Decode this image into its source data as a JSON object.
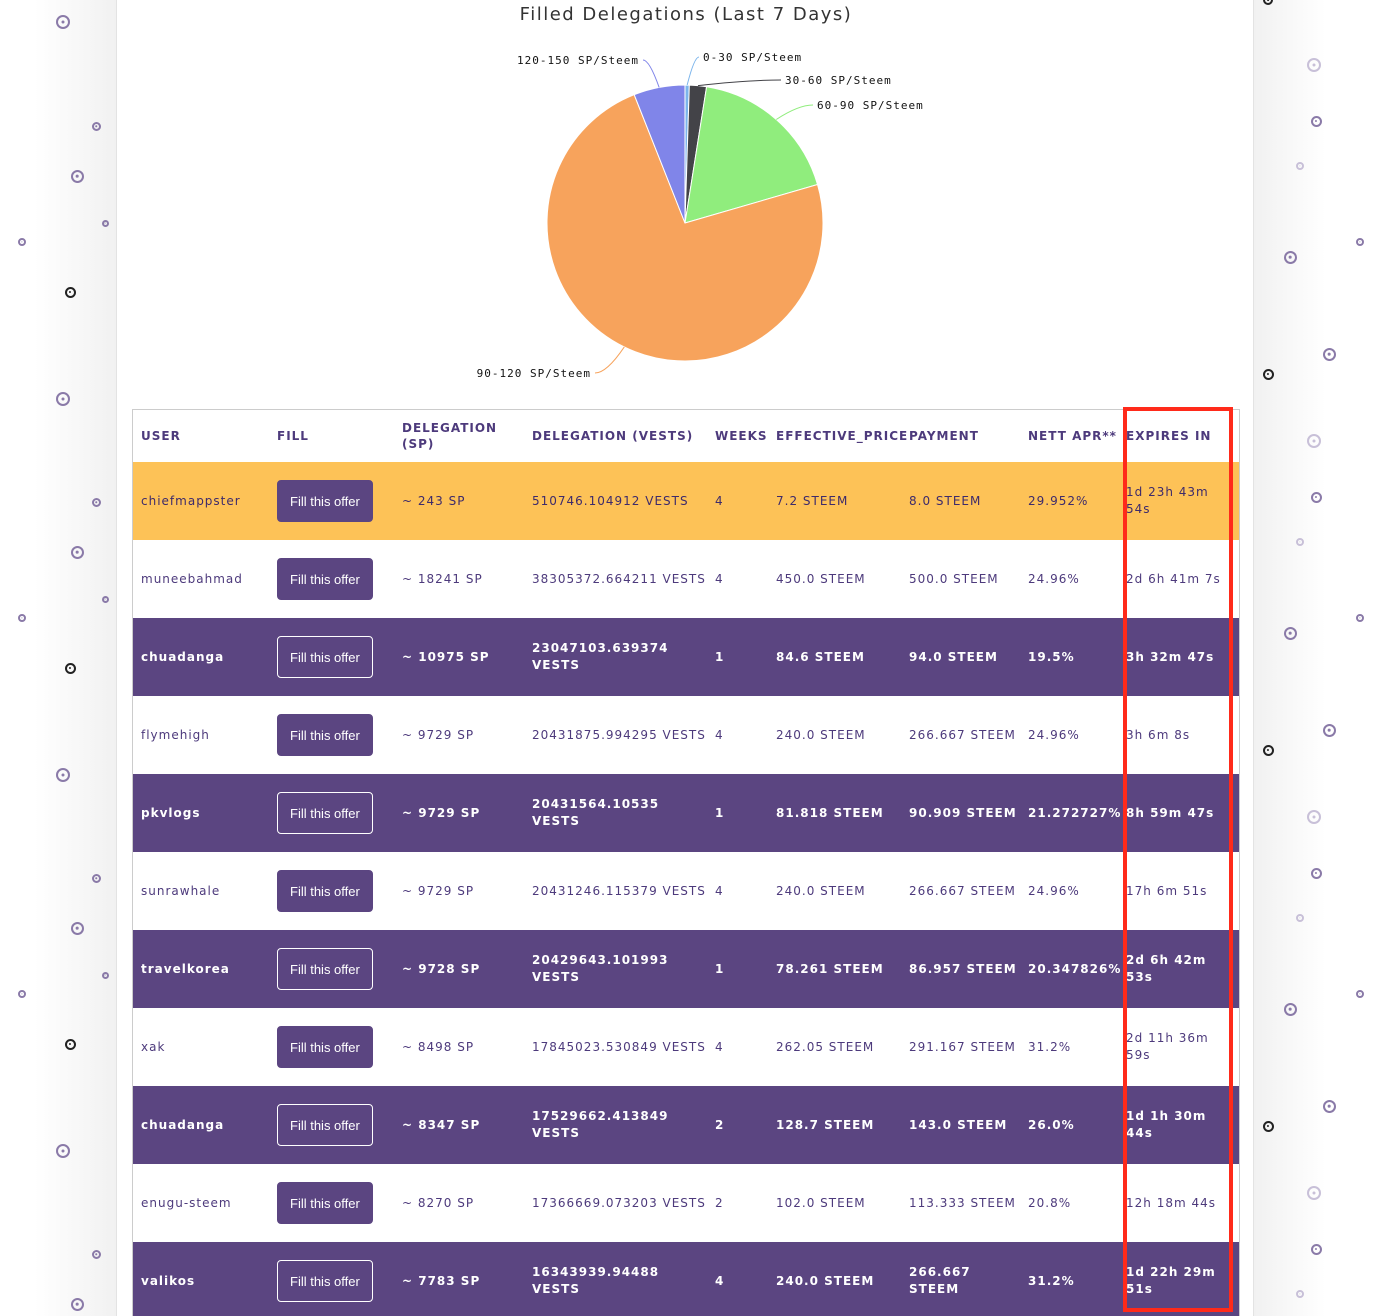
{
  "chart": {
    "title": "Filled Delegations (Last 7 Days)"
  },
  "chart_data": {
    "type": "pie",
    "title": "Filled Delegations (Last 7 Days)",
    "slices": [
      {
        "label": "0-30 SP/Steem",
        "value": 0.5,
        "color": "#7cb5ec"
      },
      {
        "label": "30-60 SP/Steem",
        "value": 2.0,
        "color": "#434348"
      },
      {
        "label": "60-90 SP/Steem",
        "value": 18.0,
        "color": "#90ed7d"
      },
      {
        "label": "90-120 SP/Steem",
        "value": 73.5,
        "color": "#f7a35c"
      },
      {
        "label": "120-150 SP/Steem",
        "value": 6.0,
        "color": "#8085e9"
      }
    ]
  },
  "table": {
    "headers": {
      "user": "USER",
      "fill": "FILL",
      "delegation_sp": "DELEGATION (SP)",
      "delegation_vests": "DELEGATION (VESTS)",
      "weeks": "WEEKS",
      "effective_price": "EFFECTIVE_PRICE",
      "payment": "PAYMENT",
      "nett_apr": "NETT APR**",
      "expires_in": "EXPIRES IN"
    },
    "fill_label": "Fill this offer",
    "rows": [
      {
        "style": "hl",
        "user": "chiefmappster",
        "sp": "~ 243 SP",
        "vests": "510746.104912 VESTS",
        "weeks": "4",
        "price": "7.2 STEEM",
        "payment": "8.0 STEEM",
        "apr": "29.952%",
        "expires": "1d 23h 43m 54s"
      },
      {
        "style": "light",
        "user": "muneebahmad",
        "sp": "~ 18241 SP",
        "vests": "38305372.664211 VESTS",
        "weeks": "4",
        "price": "450.0 STEEM",
        "payment": "500.0 STEEM",
        "apr": "24.96%",
        "expires": "2d 6h 41m 7s"
      },
      {
        "style": "dark",
        "user": "chuadanga",
        "sp": "~ 10975 SP",
        "vests": "23047103.639374 VESTS",
        "weeks": "1",
        "price": "84.6 STEEM",
        "payment": "94.0 STEEM",
        "apr": "19.5%",
        "expires": "3h 32m 47s"
      },
      {
        "style": "light",
        "user": "flymehigh",
        "sp": "~ 9729 SP",
        "vests": "20431875.994295 VESTS",
        "weeks": "4",
        "price": "240.0 STEEM",
        "payment": "266.667 STEEM",
        "apr": "24.96%",
        "expires": "3h 6m 8s"
      },
      {
        "style": "dark",
        "user": "pkvlogs",
        "sp": "~ 9729 SP",
        "vests": "20431564.10535 VESTS",
        "weeks": "1",
        "price": "81.818 STEEM",
        "payment": "90.909 STEEM",
        "apr": "21.272727%",
        "expires": "8h 59m 47s"
      },
      {
        "style": "light",
        "user": "sunrawhale",
        "sp": "~ 9729 SP",
        "vests": "20431246.115379 VESTS",
        "weeks": "4",
        "price": "240.0 STEEM",
        "payment": "266.667 STEEM",
        "apr": "24.96%",
        "expires": "17h 6m 51s"
      },
      {
        "style": "dark",
        "user": "travelkorea",
        "sp": "~ 9728 SP",
        "vests": "20429643.101993 VESTS",
        "weeks": "1",
        "price": "78.261 STEEM",
        "payment": "86.957 STEEM",
        "apr": "20.347826%",
        "expires": "2d 6h 42m 53s"
      },
      {
        "style": "light",
        "user": "xak",
        "sp": "~ 8498 SP",
        "vests": "17845023.530849 VESTS",
        "weeks": "4",
        "price": "262.05 STEEM",
        "payment": "291.167 STEEM",
        "apr": "31.2%",
        "expires": "2d 11h 36m 59s"
      },
      {
        "style": "dark",
        "user": "chuadanga",
        "sp": "~ 8347 SP",
        "vests": "17529662.413849 VESTS",
        "weeks": "2",
        "price": "128.7 STEEM",
        "payment": "143.0 STEEM",
        "apr": "26.0%",
        "expires": "1d 1h 30m 44s"
      },
      {
        "style": "light",
        "user": "enugu-steem",
        "sp": "~ 8270 SP",
        "vests": "17366669.073203 VESTS",
        "weeks": "2",
        "price": "102.0 STEEM",
        "payment": "113.333 STEEM",
        "apr": "20.8%",
        "expires": "12h 18m 44s"
      },
      {
        "style": "dark",
        "user": "valikos",
        "sp": "~ 7783 SP",
        "vests": "16343939.94488 VESTS",
        "weeks": "4",
        "price": "240.0 STEEM",
        "payment": "266.667 STEEM",
        "apr": "31.2%",
        "expires": "1d 22h 29m 51s"
      }
    ]
  },
  "colors": {
    "accent_purple": "#5b4581",
    "highlight_row": "#fdc257",
    "annotation_red": "#ff2a1a"
  }
}
